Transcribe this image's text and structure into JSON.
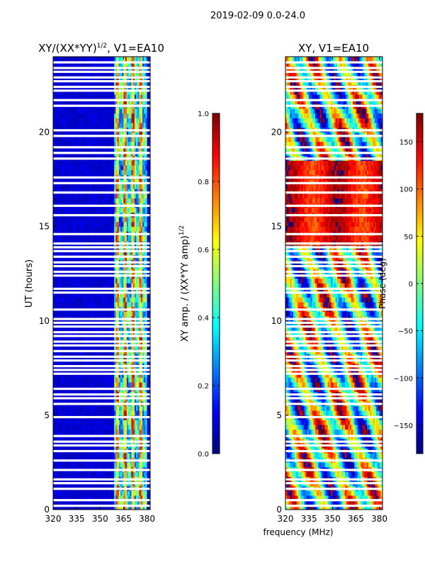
{
  "suptitle": "2019-02-09 0.0-24.0",
  "chart_data": [
    {
      "type": "heatmap",
      "title_main": "XY/(XX*YY)",
      "title_exp": "1/2",
      "title_tail": ", V1=EA10",
      "xlabel": "",
      "ylabel": "UT (hours)",
      "xlim": [
        320,
        382
      ],
      "ylim": [
        0,
        24
      ],
      "xticks": [
        320,
        335,
        350,
        365,
        380
      ],
      "yticks": [
        0,
        5,
        10,
        15,
        20
      ],
      "xtick_labels": [
        "320",
        "335",
        "350",
        "365",
        "380"
      ],
      "ytick_labels": [
        "0",
        "5",
        "10",
        "15",
        "20"
      ],
      "colorscale": "jet",
      "colorbar": {
        "label_main": "XY amp. / (XX*YY amp)",
        "label_exp": "1/2",
        "range": [
          0.0,
          1.0
        ],
        "ticks": [
          0.0,
          0.2,
          0.4,
          0.6,
          0.8,
          1.0
        ],
        "tick_labels": [
          "0.0",
          "0.2",
          "0.4",
          "0.6",
          "0.8",
          "1.0"
        ]
      },
      "bright_band_mhz": [
        359,
        380
      ],
      "bright_stripes_mhz": [
        361,
        366,
        371,
        376
      ]
    },
    {
      "type": "heatmap",
      "title": "XY, V1=EA10",
      "xlabel": "frequency (MHz)",
      "ylabel": "",
      "xlim": [
        320,
        382
      ],
      "ylim": [
        0,
        24
      ],
      "xticks": [
        320,
        335,
        350,
        365,
        380
      ],
      "yticks": [
        0,
        5,
        10,
        15,
        20
      ],
      "xtick_labels": [
        "320",
        "335",
        "350",
        "365",
        "380"
      ],
      "ytick_labels": [
        "0",
        "5",
        "10",
        "15",
        "20"
      ],
      "colorscale": "jet",
      "colorbar": {
        "label": "Phase (deg)",
        "range": [
          -180,
          180
        ],
        "ticks": [
          -150,
          -100,
          -50,
          0,
          50,
          100,
          150
        ],
        "tick_labels": [
          "−150",
          "−100",
          "−50",
          "0",
          "50",
          "100",
          "150"
        ]
      }
    }
  ],
  "flagged_ut_hours": [
    0.2,
    0.5,
    1.1,
    1.4,
    1.6,
    2.1,
    2.6,
    3.1,
    3.4,
    3.6,
    3.9,
    4.9,
    5.6,
    5.9,
    6.1,
    6.4,
    7.2,
    7.4,
    7.6,
    7.9,
    8.1,
    8.4,
    8.7,
    8.9,
    9.2,
    9.4,
    9.7,
    9.9,
    10.1,
    10.6,
    11.5,
    11.7,
    12.4,
    12.6,
    12.9,
    13.1,
    13.4,
    13.7,
    13.9,
    14.1,
    14.6,
    15.6,
    16.1,
    16.8,
    17.3,
    17.6,
    18.6,
    18.9,
    19.2,
    19.8,
    20.1,
    21.4,
    21.7,
    22.2,
    22.4,
    22.7,
    22.9,
    23.2,
    23.4,
    23.7
  ]
}
